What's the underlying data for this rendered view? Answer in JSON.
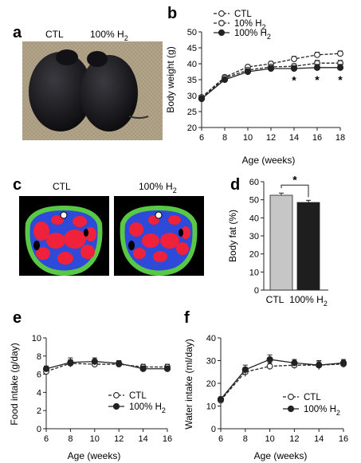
{
  "panel_letters": {
    "a": "a",
    "b": "b",
    "c": "c",
    "d": "d",
    "e": "e",
    "f": "f"
  },
  "photo": {
    "left_caption": "CTL",
    "right_caption": "100% H",
    "right_caption_sub": "2"
  },
  "scans": {
    "left_caption": "CTL",
    "right_caption": "100% H",
    "right_caption_sub": "2",
    "colors": {
      "background": "#000000",
      "lean": "#2e4ad8",
      "fat": "#f0213a",
      "skin": "#58c845",
      "bone": "#ffffff"
    }
  },
  "colors": {
    "ctl_bar": "#c6c6c6",
    "h2_bar": "#1e1e1e",
    "line": "#222222",
    "open_marker": "#ffffff"
  },
  "chart_data": [
    {
      "id": "b",
      "type": "line",
      "xlabel": "Age (weeks)",
      "ylabel": "Body weight (g)",
      "x": [
        6,
        8,
        10,
        12,
        14,
        16,
        18
      ],
      "xlim": [
        6,
        18
      ],
      "ylim": [
        20,
        50
      ],
      "xticks": [
        6,
        8,
        10,
        12,
        14,
        16,
        18
      ],
      "yticks": [
        20,
        25,
        30,
        35,
        40,
        45,
        50
      ],
      "legend_position": "top-left",
      "series": [
        {
          "name": "CTL",
          "name_sub": "",
          "marker": "open",
          "dash": true,
          "values": [
            29.5,
            35.8,
            39.0,
            40.0,
            41.5,
            42.8,
            43.2
          ],
          "err": [
            0.4,
            0.6,
            0.6,
            0.7,
            0.8,
            0.8,
            0.8
          ]
        },
        {
          "name": "10% H",
          "name_sub": "2",
          "marker": "hollow-gray",
          "dash": true,
          "values": [
            29.3,
            35.5,
            38.0,
            39.0,
            39.2,
            40.2,
            40.2
          ],
          "err": [
            0.4,
            0.6,
            0.7,
            0.7,
            0.8,
            0.9,
            0.9
          ]
        },
        {
          "name": "100% H",
          "name_sub": "2",
          "marker": "filled",
          "dash": false,
          "values": [
            29.0,
            35.0,
            37.5,
            38.5,
            38.5,
            38.8,
            38.8
          ],
          "err": [
            0.4,
            0.6,
            0.8,
            0.9,
            0.9,
            1.0,
            1.0
          ]
        }
      ],
      "annotations": [
        {
          "x": 14,
          "text": "*"
        },
        {
          "x": 16,
          "text": "*"
        },
        {
          "x": 18,
          "text": "*"
        }
      ]
    },
    {
      "id": "d",
      "type": "bar",
      "ylabel": "Body fat (%)",
      "categories": [
        "CTL",
        "100% H"
      ],
      "category_subs": [
        "",
        "2"
      ],
      "values": [
        52.5,
        48.5
      ],
      "err": [
        1.2,
        1.2
      ],
      "ylim": [
        0,
        60
      ],
      "yticks": [
        0,
        10,
        20,
        30,
        40,
        50,
        60
      ],
      "annotations": [
        {
          "text": "*"
        }
      ]
    },
    {
      "id": "e",
      "type": "line",
      "xlabel": "Age (weeks)",
      "ylabel": "Food intake (g/day)",
      "x": [
        6,
        8,
        10,
        12,
        14,
        16
      ],
      "xlim": [
        6,
        16
      ],
      "ylim": [
        0,
        10
      ],
      "xticks": [
        6,
        8,
        10,
        12,
        14,
        16
      ],
      "yticks": [
        0,
        2,
        4,
        6,
        8,
        10
      ],
      "legend_position": "bottom-right",
      "series": [
        {
          "name": "CTL",
          "name_sub": "",
          "marker": "open",
          "dash": true,
          "values": [
            6.3,
            7.2,
            7.1,
            7.1,
            6.8,
            6.8
          ],
          "err": [
            0.3,
            0.4,
            0.3,
            0.3,
            0.3,
            0.3
          ]
        },
        {
          "name": "100% H",
          "name_sub": "2",
          "marker": "filled",
          "dash": false,
          "values": [
            6.6,
            7.3,
            7.4,
            7.2,
            6.6,
            6.6
          ],
          "err": [
            0.3,
            0.5,
            0.4,
            0.3,
            0.3,
            0.3
          ]
        }
      ]
    },
    {
      "id": "f",
      "type": "line",
      "xlabel": "Age (weeks)",
      "ylabel": "Water intake (ml/day)",
      "x": [
        6,
        8,
        10,
        12,
        14,
        16
      ],
      "xlim": [
        6,
        16
      ],
      "ylim": [
        0,
        40
      ],
      "xticks": [
        6,
        8,
        10,
        12,
        14,
        16
      ],
      "yticks": [
        0,
        10,
        20,
        30,
        40
      ],
      "legend_position": "bottom-right",
      "series": [
        {
          "name": "CTL",
          "name_sub": "",
          "marker": "open",
          "dash": true,
          "values": [
            12.5,
            25.0,
            27.5,
            28.0,
            28.0,
            28.5
          ],
          "err": [
            1.0,
            2.0,
            1.5,
            1.5,
            1.5,
            1.5
          ]
        },
        {
          "name": "100% H",
          "name_sub": "2",
          "marker": "filled",
          "dash": false,
          "values": [
            13.0,
            26.0,
            30.5,
            29.0,
            28.0,
            29.0
          ],
          "err": [
            1.0,
            2.0,
            2.0,
            1.5,
            2.0,
            1.5
          ]
        }
      ]
    }
  ]
}
